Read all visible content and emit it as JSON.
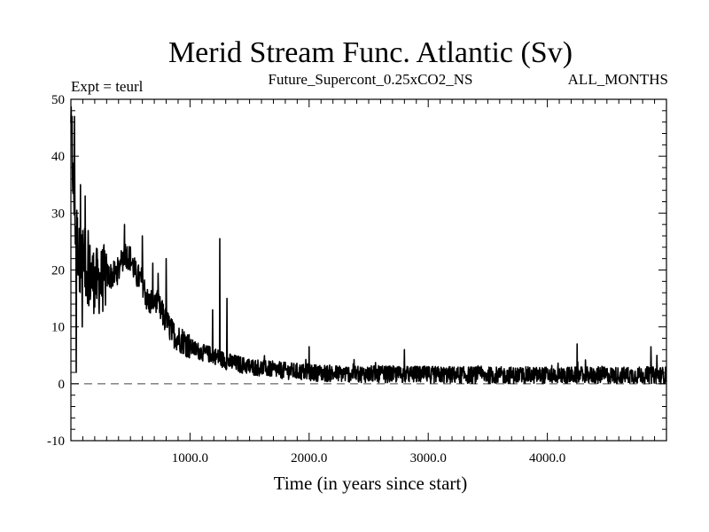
{
  "chart_data": {
    "type": "line",
    "title": "Merid Stream Func. Atlantic (Sv)",
    "subtitle_left": "Expt = teurl",
    "subtitle_center": "Future_Supercont_0.25xCO2_NS",
    "subtitle_right": "ALL_MONTHS",
    "xlabel": "Time (in years since start)",
    "ylabel": "",
    "xlim": [
      0,
      5000
    ],
    "ylim": [
      -10,
      50
    ],
    "x_ticks": [
      1000,
      2000,
      3000,
      4000
    ],
    "x_tick_labels": [
      "1000.0",
      "2000.0",
      "3000.0",
      "4000.0"
    ],
    "y_ticks": [
      -10,
      0,
      10,
      20,
      30,
      40,
      50
    ],
    "y_tick_labels": [
      "-10",
      "0",
      "10",
      "20",
      "30",
      "40",
      "50"
    ],
    "grid": false,
    "reference_line": {
      "y": 0,
      "style": "dashed"
    },
    "series": [
      {
        "x": [
          0,
          15,
          30,
          50,
          70,
          90,
          110,
          140,
          170,
          200,
          250,
          300,
          350,
          400,
          450,
          500,
          550,
          600,
          650,
          700,
          750,
          800,
          850,
          900,
          950,
          1000,
          1100,
          1200,
          1250,
          1300,
          1400,
          1500,
          1600,
          1700,
          1800,
          2000,
          2200,
          2500,
          3000,
          3500,
          4000,
          4500,
          5000
        ],
        "values": [
          44,
          38,
          30,
          26,
          22,
          22,
          21,
          20,
          19,
          18,
          18,
          19,
          19,
          20,
          23,
          22,
          19,
          18,
          14,
          15,
          13,
          11,
          9,
          8,
          7.5,
          6.5,
          5.5,
          5,
          4.5,
          4,
          3.5,
          3,
          2.8,
          2.5,
          2.3,
          2.0,
          1.8,
          1.7,
          1.6,
          1.5,
          1.5,
          1.5,
          1.5
        ],
        "spikes": [
          {
            "x": 10,
            "y": 47
          },
          {
            "x": 30,
            "y": 47
          },
          {
            "x": 45,
            "y": 2
          },
          {
            "x": 80,
            "y": 35
          },
          {
            "x": 95,
            "y": 10
          },
          {
            "x": 120,
            "y": 33
          },
          {
            "x": 450,
            "y": 28
          },
          {
            "x": 600,
            "y": 26
          },
          {
            "x": 800,
            "y": 22
          },
          {
            "x": 1190,
            "y": 13
          },
          {
            "x": 1250,
            "y": 25.5
          },
          {
            "x": 1310,
            "y": 15
          },
          {
            "x": 2000,
            "y": 6.5
          },
          {
            "x": 2800,
            "y": 6
          },
          {
            "x": 4250,
            "y": 7
          },
          {
            "x": 4870,
            "y": 6.5
          },
          {
            "x": 4920,
            "y": 5
          }
        ],
        "noise_amplitude": 1.5
      }
    ]
  }
}
